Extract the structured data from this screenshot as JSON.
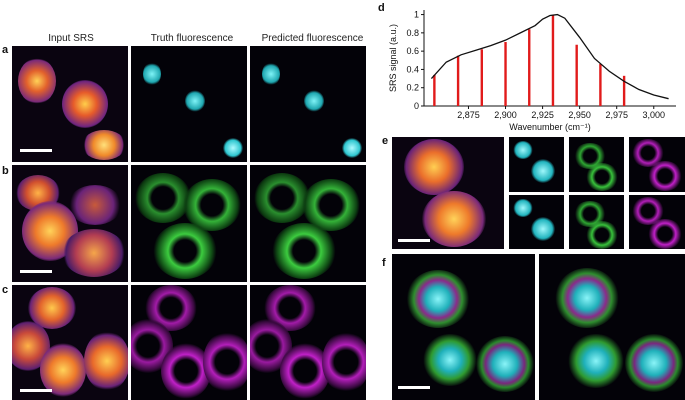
{
  "panel_labels": [
    "a",
    "b",
    "c",
    "d",
    "e",
    "f"
  ],
  "column_headers": [
    "Input SRS",
    "Truth fluorescence",
    "Predicted fluorescence"
  ],
  "chart_data": {
    "type": "line",
    "x": [
      2850,
      2860,
      2870,
      2880,
      2890,
      2900,
      2910,
      2920,
      2925,
      2930,
      2935,
      2940,
      2950,
      2960,
      2970,
      2980,
      2990,
      3000,
      3010
    ],
    "y": [
      0.3,
      0.48,
      0.56,
      0.61,
      0.66,
      0.72,
      0.8,
      0.88,
      0.95,
      0.99,
      1.0,
      0.96,
      0.75,
      0.52,
      0.38,
      0.27,
      0.18,
      0.12,
      0.08
    ],
    "sample_positions": [
      2852,
      2868,
      2884,
      2900,
      2916,
      2932,
      2948,
      2964,
      2980
    ],
    "sample_values": [
      0.34,
      0.55,
      0.62,
      0.7,
      0.84,
      0.99,
      0.67,
      0.46,
      0.33
    ],
    "xlabel": "Wavenumber (cm⁻¹)",
    "ylabel": "SRS signal (a.u.)",
    "xticks": [
      "2,875",
      "2,900",
      "2,925",
      "2,950",
      "2,975",
      "3,000"
    ],
    "xtick_values": [
      2875,
      2900,
      2925,
      2950,
      2975,
      3000
    ],
    "yticks": [
      "0",
      "0.2",
      "0.4",
      "0.6",
      "0.8",
      "1"
    ],
    "ytick_values": [
      0,
      0.2,
      0.4,
      0.6,
      0.8,
      1.0
    ],
    "xlim": [
      2845,
      3015
    ],
    "ylim": [
      0,
      1.05
    ],
    "line_color": "#111111",
    "bar_color": "#e11b1b"
  },
  "colors": {
    "srs": "#f5a623",
    "nucleus": "#33d6e0",
    "mito": "#35c93a",
    "membrane": "#c020c8"
  }
}
